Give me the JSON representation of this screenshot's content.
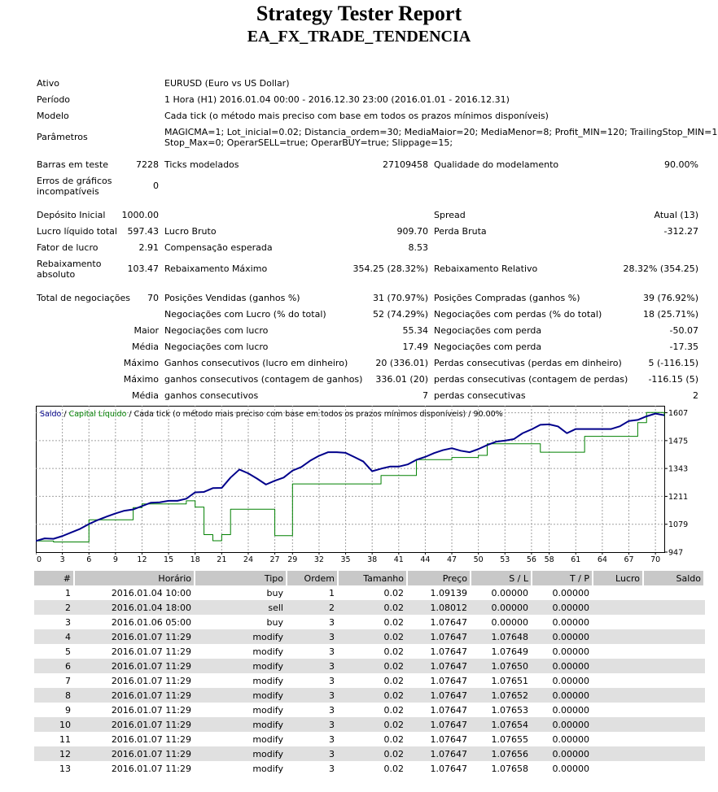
{
  "report": {
    "title": "Strategy Tester Report",
    "subtitle": "EA_FX_TRADE_TENDENCIA"
  },
  "settings": [
    {
      "label": "Ativo",
      "value": "EURUSD (Euro vs US Dollar)"
    },
    {
      "label": "Período",
      "value": "1 Hora (H1) 2016.01.04 00:00 - 2016.12.30 23:00 (2016.01.01 - 2016.12.31)"
    },
    {
      "label": "Modelo",
      "value": "Cada tick (o método mais preciso com base em todos os prazos mínimos disponíveis)"
    },
    {
      "label": "Parâmetros",
      "value_line1": "MAGICMA=1; Lot_inicial=0.02; Distancia_ordem=30; MediaMaior=20; MediaMenor=8; Profit_MIN=120; TrailingStop_MIN=100;",
      "value_line2": "Stop_Max=0; OperarSELL=true; OperarBUY=true; Slippage=15;"
    }
  ],
  "bars": {
    "bars_label": "Barras em teste",
    "bars_value": "7228",
    "ticks_label": "Ticks modelados",
    "ticks_value": "27109458",
    "quality_label": "Qualidade do modelamento",
    "quality_value": "90.00%",
    "errors_label_line1": "Erros de gráficos",
    "errors_label_line2": "incompatíveis",
    "errors_value": "0"
  },
  "results": {
    "deposit_label": "Depósito Inicial",
    "deposit_value": "1000.00",
    "spread_label": "Spread",
    "spread_value": "Atual (13)",
    "net_label": "Lucro líquido total",
    "net_value": "597.43",
    "gross_profit_label": "Lucro Bruto",
    "gross_profit_value": "909.70",
    "gross_loss_label": "Perda Bruta",
    "gross_loss_value": "-312.27",
    "pf_label": "Fator de lucro",
    "pf_value": "2.91",
    "expected_label": "Compensação esperada",
    "expected_value": "8.53",
    "abs_dd_label_line1": "Rebaixamento",
    "abs_dd_label_line2": "absoluto",
    "abs_dd_value": "103.47",
    "max_dd_label": "Rebaixamento Máximo",
    "max_dd_value": "354.25 (28.32%)",
    "rel_dd_label": "Rebaixamento Relativo",
    "rel_dd_value": "28.32% (354.25)"
  },
  "trades_stats": {
    "total_label": "Total de negociações",
    "total_value": "70",
    "short_label": "Posições Vendidas (ganhos %)",
    "short_value": "31 (70.97%)",
    "long_label": "Posições Compradas (ganhos %)",
    "long_value": "39 (76.92%)",
    "profit_trades_label": "Negociações com Lucro (% do total)",
    "profit_trades_value": "52 (74.29%)",
    "loss_trades_label": "Negociações com perdas (% do total)",
    "loss_trades_value": "18 (25.71%)",
    "largest_cap": "Maior",
    "largest_profit_label": "Negociações com lucro",
    "largest_profit_value": "55.34",
    "largest_loss_label": "Negociações com perda",
    "largest_loss_value": "-50.07",
    "average_cap": "Média",
    "avg_profit_label": "Negociações com lucro",
    "avg_profit_value": "17.49",
    "avg_loss_label": "Negociações com perda",
    "avg_loss_value": "-17.35",
    "max_cap1": "Máximo",
    "max_consec_wins_label": "Ganhos consecutivos (lucro em dinheiro)",
    "max_consec_wins_value": "20 (336.01)",
    "max_consec_losses_label": "Perdas consecutivas (perdas em dinheiro)",
    "max_consec_losses_value": "5 (-116.15)",
    "max_cap2": "Máximo",
    "max_consec_profit_label": "ganhos consecutivos (contagem de ganhos)",
    "max_consec_profit_value": "336.01 (20)",
    "max_consec_loss_label": "perdas consecutivas (contagem de perdas)",
    "max_consec_loss_value": "-116.15 (5)",
    "average_cap2": "Média",
    "avg_consec_wins_label": "ganhos consecutivos",
    "avg_consec_wins_value": "7",
    "avg_consec_losses_label": "perdas consecutivas",
    "avg_consec_losses_value": "2"
  },
  "chart_data": {
    "type": "line",
    "legend_balance": "Saldo",
    "legend_sep1": " / ",
    "legend_equity": "Capital Líquido",
    "legend_rest": " / Cada tick (o método mais preciso com base em todos os prazos mínimos disponíveis) / 90.00%",
    "x_ticks": [
      "0",
      "3",
      "6",
      "9",
      "12",
      "15",
      "18",
      "21",
      "24",
      "27",
      "29",
      "32",
      "35",
      "38",
      "41",
      "44",
      "47",
      "50",
      "53",
      "56",
      "58",
      "61",
      "64",
      "67",
      "70"
    ],
    "y_ticks": [
      "1607",
      "1475",
      "1343",
      "1211",
      "1079",
      "947"
    ],
    "xlim": [
      0,
      71
    ],
    "ylim": [
      947,
      1640
    ],
    "colors": {
      "balance": "#00008b",
      "equity": "#008000",
      "grid": "#a0a0a0"
    },
    "series": [
      {
        "name": "Saldo",
        "x": [
          0,
          1,
          2,
          3,
          4,
          5,
          6,
          7,
          8,
          9,
          10,
          11,
          12,
          13,
          14,
          15,
          16,
          17,
          18,
          19,
          20,
          21,
          22,
          23,
          24,
          25,
          26,
          27,
          28,
          29,
          30,
          31,
          32,
          33,
          34,
          35,
          36,
          37,
          38,
          39,
          40,
          41,
          42,
          43,
          44,
          45,
          46,
          47,
          48,
          49,
          50,
          51,
          52,
          53,
          54,
          55,
          56,
          57,
          58,
          59,
          60,
          61,
          62,
          63,
          64,
          65,
          66,
          67,
          68,
          69,
          70,
          71
        ],
        "values": [
          1000,
          1012,
          1010,
          1023,
          1040,
          1057,
          1080,
          1099,
          1115,
          1130,
          1143,
          1149,
          1165,
          1181,
          1183,
          1190,
          1190,
          1200,
          1230,
          1232,
          1250,
          1251,
          1300,
          1338,
          1320,
          1295,
          1267,
          1285,
          1300,
          1333,
          1350,
          1380,
          1403,
          1420,
          1420,
          1417,
          1397,
          1376,
          1330,
          1342,
          1352,
          1352,
          1362,
          1384,
          1398,
          1416,
          1430,
          1439,
          1427,
          1420,
          1435,
          1454,
          1470,
          1475,
          1482,
          1510,
          1528,
          1550,
          1552,
          1542,
          1510,
          1530,
          1530,
          1530,
          1530,
          1530,
          1543,
          1568,
          1573,
          1590,
          1603,
          1595
        ]
      },
      {
        "name": "Capital Líquido",
        "x": [
          0,
          1,
          2,
          3,
          4,
          5,
          6,
          7,
          8,
          9,
          10,
          11,
          12,
          13,
          14,
          15,
          16,
          17,
          18,
          19,
          20,
          21,
          22,
          23,
          24,
          25,
          26,
          27,
          28,
          29,
          30,
          31,
          32,
          33,
          34,
          35,
          36,
          37,
          38,
          39,
          40,
          41,
          42,
          43,
          44,
          45,
          46,
          47,
          48,
          49,
          50,
          51,
          52,
          53,
          54,
          55,
          56,
          57,
          58,
          59,
          60,
          61,
          62,
          63,
          64,
          65,
          66,
          67,
          68,
          69,
          70,
          71
        ],
        "values": [
          1000,
          1000,
          995,
          995,
          995,
          995,
          1100,
          1100,
          1100,
          1100,
          1100,
          1158,
          1175,
          1175,
          1175,
          1175,
          1175,
          1190,
          1160,
          1030,
          1001,
          1030,
          1150,
          1150,
          1150,
          1150,
          1150,
          1025,
          1025,
          1270,
          1270,
          1270,
          1270,
          1270,
          1270,
          1270,
          1270,
          1270,
          1270,
          1310,
          1310,
          1310,
          1310,
          1385,
          1385,
          1385,
          1385,
          1395,
          1395,
          1395,
          1405,
          1460,
          1460,
          1460,
          1460,
          1460,
          1460,
          1420,
          1420,
          1420,
          1420,
          1420,
          1495,
          1495,
          1495,
          1495,
          1495,
          1495,
          1560,
          1608,
          1608,
          1590
        ]
      }
    ]
  },
  "trades_table": {
    "headers": [
      "#",
      "Horário",
      "Tipo",
      "Ordem",
      "Tamanho",
      "Preço",
      "S / L",
      "T / P",
      "Lucro",
      "Saldo"
    ],
    "rows": [
      [
        "1",
        "2016.01.04 10:00",
        "buy",
        "1",
        "0.02",
        "1.09139",
        "0.00000",
        "0.00000",
        "",
        ""
      ],
      [
        "2",
        "2016.01.04 18:00",
        "sell",
        "2",
        "0.02",
        "1.08012",
        "0.00000",
        "0.00000",
        "",
        ""
      ],
      [
        "3",
        "2016.01.06 05:00",
        "buy",
        "3",
        "0.02",
        "1.07647",
        "0.00000",
        "0.00000",
        "",
        ""
      ],
      [
        "4",
        "2016.01.07 11:29",
        "modify",
        "3",
        "0.02",
        "1.07647",
        "1.07648",
        "0.00000",
        "",
        ""
      ],
      [
        "5",
        "2016.01.07 11:29",
        "modify",
        "3",
        "0.02",
        "1.07647",
        "1.07649",
        "0.00000",
        "",
        ""
      ],
      [
        "6",
        "2016.01.07 11:29",
        "modify",
        "3",
        "0.02",
        "1.07647",
        "1.07650",
        "0.00000",
        "",
        ""
      ],
      [
        "7",
        "2016.01.07 11:29",
        "modify",
        "3",
        "0.02",
        "1.07647",
        "1.07651",
        "0.00000",
        "",
        ""
      ],
      [
        "8",
        "2016.01.07 11:29",
        "modify",
        "3",
        "0.02",
        "1.07647",
        "1.07652",
        "0.00000",
        "",
        ""
      ],
      [
        "9",
        "2016.01.07 11:29",
        "modify",
        "3",
        "0.02",
        "1.07647",
        "1.07653",
        "0.00000",
        "",
        ""
      ],
      [
        "10",
        "2016.01.07 11:29",
        "modify",
        "3",
        "0.02",
        "1.07647",
        "1.07654",
        "0.00000",
        "",
        ""
      ],
      [
        "11",
        "2016.01.07 11:29",
        "modify",
        "3",
        "0.02",
        "1.07647",
        "1.07655",
        "0.00000",
        "",
        ""
      ],
      [
        "12",
        "2016.01.07 11:29",
        "modify",
        "3",
        "0.02",
        "1.07647",
        "1.07656",
        "0.00000",
        "",
        ""
      ],
      [
        "13",
        "2016.01.07 11:29",
        "modify",
        "3",
        "0.02",
        "1.07647",
        "1.07658",
        "0.00000",
        "",
        ""
      ]
    ]
  }
}
